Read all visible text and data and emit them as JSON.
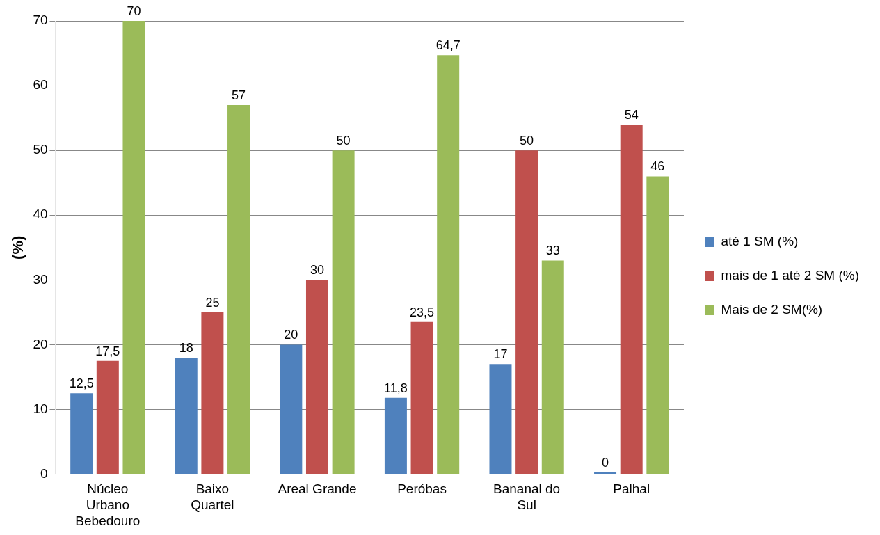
{
  "chart_data": {
    "type": "bar",
    "ylabel": "(%)",
    "categories": [
      "Núcleo Urbano Bebedouro",
      "Baixo Quartel",
      "Areal Grande",
      "Peróbas",
      "Bananal do Sul",
      "Palhal"
    ],
    "series": [
      {
        "name": "até 1 SM (%)",
        "color": "#4f81bd",
        "values": [
          12.5,
          18,
          20,
          11.8,
          17,
          0
        ],
        "value_labels": [
          "12,5",
          "18",
          "20",
          "11,8",
          "17",
          "0"
        ]
      },
      {
        "name": "mais de 1 até 2 SM (%)",
        "color": "#c0504d",
        "values": [
          17.5,
          25,
          30,
          23.5,
          50,
          54
        ],
        "value_labels": [
          "17,5",
          "25",
          "30",
          "23,5",
          "50",
          "54"
        ]
      },
      {
        "name": "Mais de 2 SM(%)",
        "color": "#9bbb59",
        "values": [
          70,
          57,
          50,
          64.7,
          33,
          46
        ],
        "value_labels": [
          "70",
          "57",
          "50",
          "64,7",
          "33",
          "46"
        ]
      }
    ],
    "ylim": [
      0,
      70
    ],
    "yticks": [
      0,
      10,
      20,
      30,
      40,
      50,
      60,
      70
    ],
    "grid": "y",
    "legend": "right"
  }
}
